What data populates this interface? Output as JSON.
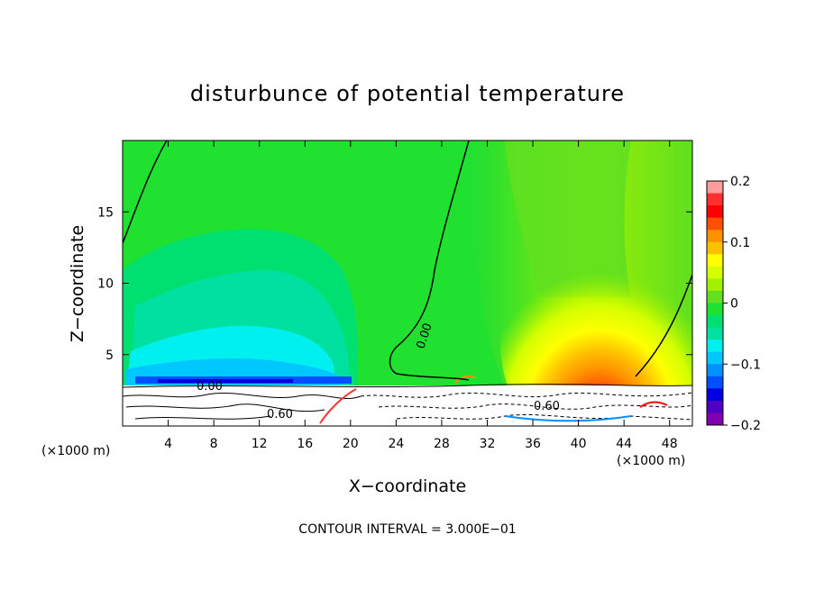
{
  "chart_data": {
    "type": "heatmap",
    "title": "disturbunce of potential temperature",
    "xlabel": "X−coordinate",
    "ylabel": "Z−coordinate",
    "x_unit": "(×1000 m)",
    "x_unit_right": "(×1000 m)",
    "xlim": [
      0,
      50
    ],
    "ylim": [
      0,
      20
    ],
    "x_ticks": [
      4,
      8,
      12,
      16,
      20,
      24,
      28,
      32,
      36,
      40,
      44,
      48
    ],
    "y_ticks": [
      5,
      10,
      15
    ],
    "colorbar": {
      "min": -0.2,
      "max": 0.2,
      "tick_values": [
        0.2,
        0.1,
        0,
        -0.1,
        -0.2
      ],
      "tick_labels": [
        "0.2",
        "0.1",
        "0",
        "−0.1",
        "−0.2"
      ],
      "levels": [
        {
          "from": 0.18,
          "to": 0.2,
          "color": "#ff9c9c"
        },
        {
          "from": 0.16,
          "to": 0.18,
          "color": "#ff3030"
        },
        {
          "from": 0.14,
          "to": 0.16,
          "color": "#ff0000"
        },
        {
          "from": 0.12,
          "to": 0.14,
          "color": "#ff5000"
        },
        {
          "from": 0.1,
          "to": 0.12,
          "color": "#ff9000"
        },
        {
          "from": 0.08,
          "to": 0.1,
          "color": "#ffc000"
        },
        {
          "from": 0.06,
          "to": 0.08,
          "color": "#ffff00"
        },
        {
          "from": 0.04,
          "to": 0.06,
          "color": "#d4ff00"
        },
        {
          "from": 0.02,
          "to": 0.04,
          "color": "#a0f000"
        },
        {
          "from": 0.0,
          "to": 0.02,
          "color": "#60e020"
        },
        {
          "from": -0.02,
          "to": 0.0,
          "color": "#20e030"
        },
        {
          "from": -0.04,
          "to": -0.02,
          "color": "#00e070"
        },
        {
          "from": -0.06,
          "to": -0.04,
          "color": "#00e0a0"
        },
        {
          "from": -0.08,
          "to": -0.06,
          "color": "#00f0f0"
        },
        {
          "from": -0.1,
          "to": -0.08,
          "color": "#00c8ff"
        },
        {
          "from": -0.12,
          "to": -0.1,
          "color": "#0090ff"
        },
        {
          "from": -0.14,
          "to": -0.12,
          "color": "#0050ff"
        },
        {
          "from": -0.16,
          "to": -0.14,
          "color": "#0000e0"
        },
        {
          "from": -0.18,
          "to": -0.16,
          "color": "#5000c0"
        },
        {
          "from": -0.2,
          "to": -0.18,
          "color": "#8000b0"
        }
      ]
    },
    "contour_labels": [
      "0.00",
      "0.60"
    ],
    "contour_interval_text": "CONTOUR INTERVAL = 3.000E−01"
  }
}
